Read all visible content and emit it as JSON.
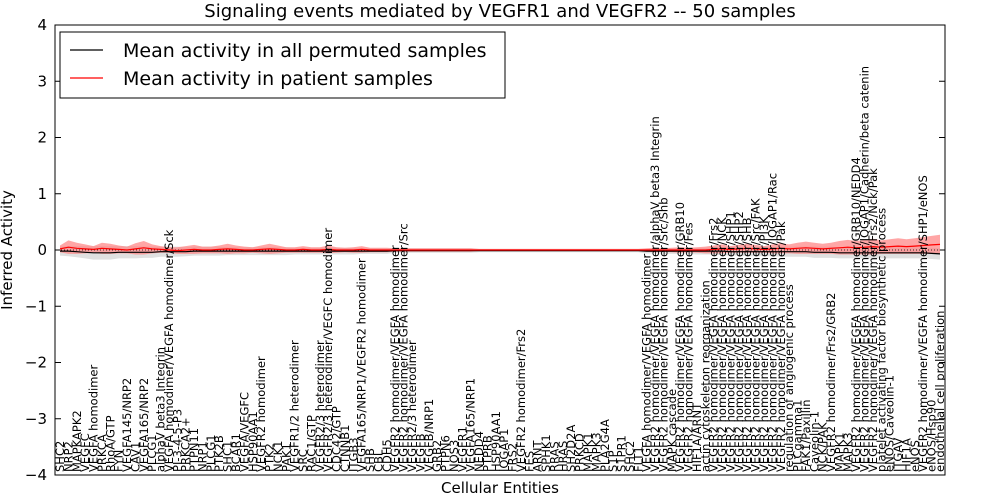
{
  "chart_data": {
    "type": "line",
    "title": "Signaling events mediated by VEGFR1 and VEGFR2 -- 50 samples",
    "xlabel": "Cellular Entities",
    "ylabel": "Inferred Activity",
    "ylim": [
      -4,
      4
    ],
    "yticks": [
      "4",
      "3",
      "2",
      "1",
      "0",
      "−1",
      "−2",
      "−3",
      "−4"
    ],
    "legend": {
      "position": "top-left",
      "entries": [
        {
          "label": "Mean activity in all permuted samples",
          "color": "#000000"
        },
        {
          "label": "Mean activity in patient samples",
          "color": "#ff0000"
        }
      ]
    },
    "colors": {
      "patient": "#ff0000",
      "patient_band": "#ff8080",
      "permuted_band": "#bbbbbb",
      "permuted": "#000000"
    },
    "categories": [
      "SHC2",
      "NRP2",
      "MAPKAPK2",
      "VEGFC",
      "VEGFA homodimer",
      "PRKCA",
      "RhoA/GTP",
      "FYN",
      "VEGFA145/NRP2",
      "CAV1",
      "VEGFA165/NRP2",
      "PLCG1",
      "alphaV beta3 Integrin",
      "VEGFA homodimer/VEGFA homodimer/Sck",
      "PI-3-4-5-P3",
      "PRKCA2+",
      "PTPN11",
      "NRP1",
      "PLCG1",
      "PTK2B",
      "SHC1",
      "BCAR1",
      "VEGFA/VEGFC",
      "HSP90AA1",
      "VEGFR2 homodimer",
      "PTK2",
      "NCK1",
      "PAK1",
      "VEGFR1/2 heterodimer",
      "SRC",
      "RAC1/GTP",
      "VEGFR2/3 heterodimer",
      "VEGFR2/3 heterodimer/VEGFC homodimer",
      "CDC42/GTP",
      "CTNNB1",
      "ITGB3",
      "VEGFA165/NRP1/VEGFR2 homodimer",
      "SHB",
      "CBL",
      "CDH5",
      "VEGFR2 homodimer/VEGFA homodimer",
      "VEGFR2 homodimer/VEGFA homodimer/Src",
      "VEGFR2/3 heterodimer",
      "VEGFB",
      "VEGFB/NRP1",
      "GRB2",
      "PTPN6",
      "NOS3",
      "VEGFR1",
      "VEGFA165/NRP1",
      "NEDD4",
      "PTPRB",
      "HSP90AA1",
      "IQGAP1",
      "FRS2",
      "VEGFR2 homodimer/Frs2",
      "FES",
      "ARNT",
      "SPHK1",
      "RRAS",
      "HRAS",
      "SH2D2A",
      "PRKCD",
      "MAPK1",
      "MAPK3",
      "PLA2G4A",
      "S1P",
      "S1PR1",
      "SHC2",
      "FLT1",
      "VEGFA homodimer/VEGFA homodimer",
      "VEGFR2 homodimer/VEGFA homodimer/alphaV beta3 Integrin",
      "VEGFR2 homodimer/VEGFA homodimer/Src/Shb",
      "MAPK cascade",
      "VEGFR2 homodimer/VEGFA homodimer/GRB10",
      "VEGFR2 homodimer/VEGFA homodimer/Fes",
      "HIF1A/ARNT",
      "actin cytoskeleton reorganization",
      "VEGFR2 homodimer/VEGFA homodimer/Frs2",
      "VEGFR2 homodimer/VEGFA homodimer/NCK",
      "VEGFR2 homodimer/VEGFA homodimer/SHP1",
      "VEGFR2 homodimer/VEGFA homodimer/SHP2",
      "VEGFR2 homodimer/VEGFA homodimer/SHB",
      "VEGFR2 homodimer/VEGFA homodimer/Src/FAK",
      "VEGFR2 homodimer/VEGFA homodimer/PI3K",
      "VEGFR2 homodimer/VEGFA homodimer/IQGAP1/Rac",
      "VEGFR2 homodimer/VEGFA homodimer/Pak",
      "regulation of angiogenic process",
      "PLCgamma1",
      "FAK1/Paxillin",
      "Caveolin-1",
      "NCK/PAK",
      "VEGFR2 homodimer/Frs2/GRB2",
      "MAPK1",
      "MAPK3",
      "VEGFR2 homodimer/VEGFA homodimer/GRB10/NEDD4",
      "VEGFR2 homodimer/VEGFA homodimer/IQGAP1/Cadherin/beta catenin",
      "VEGFR2 homodimer/VEGFA homodimer/Frs2/Nck/Pak",
      "platelet activating factor biosynthetic process",
      "eNOS/Caveolin-1",
      "ITGAV",
      "HIF1A",
      "eNOS",
      "VEGFR2 homodimer/VEGFA homodimer/SHP1/eNOS",
      "eNOS/Hsp90",
      "endothelial cell proliferation"
    ],
    "permuted_mean": [
      -0.02,
      -0.02,
      -0.03,
      -0.04,
      -0.05,
      -0.05,
      -0.05,
      -0.04,
      -0.04,
      -0.04,
      -0.04,
      -0.04,
      -0.03,
      -0.03,
      -0.03,
      -0.03,
      -0.02,
      -0.02,
      -0.02,
      -0.02,
      -0.02,
      -0.02,
      -0.02,
      -0.02,
      -0.02,
      -0.02,
      -0.02,
      -0.02,
      -0.02,
      -0.02,
      -0.02,
      -0.02,
      -0.02,
      -0.02,
      -0.02,
      -0.02,
      -0.02,
      -0.02,
      -0.02,
      -0.02,
      -0.01,
      -0.01,
      -0.01,
      -0.01,
      -0.01,
      -0.01,
      -0.01,
      -0.01,
      -0.01,
      -0.01,
      -0.01,
      -0.01,
      -0.01,
      -0.01,
      -0.01,
      -0.01,
      -0.01,
      -0.01,
      -0.01,
      -0.01,
      -0.01,
      -0.01,
      -0.01,
      -0.01,
      -0.01,
      -0.01,
      -0.01,
      -0.01,
      -0.01,
      -0.01,
      -0.02,
      -0.02,
      -0.02,
      -0.02,
      -0.02,
      -0.02,
      -0.02,
      -0.02,
      -0.02,
      -0.02,
      -0.03,
      -0.03,
      -0.03,
      -0.03,
      -0.03,
      -0.03,
      -0.03,
      -0.03,
      -0.03,
      -0.03,
      -0.04,
      -0.04,
      -0.04,
      -0.05,
      -0.05,
      -0.05,
      -0.05,
      -0.05,
      -0.05,
      -0.05,
      -0.05,
      -0.05,
      -0.05,
      -0.05,
      -0.06,
      -0.07
    ],
    "patient_mean": [
      0.02,
      0.05,
      0.03,
      0.02,
      0.01,
      0.03,
      0.02,
      0.01,
      0.0,
      0.02,
      0.04,
      0.02,
      0.01,
      0.0,
      -0.01,
      0.0,
      0.01,
      0.0,
      0.0,
      0.01,
      0.02,
      0.01,
      0.0,
      0.0,
      0.01,
      0.02,
      0.01,
      0.0,
      0.0,
      0.01,
      0.0,
      0.0,
      0.01,
      0.0,
      0.0,
      0.0,
      0.01,
      0.0,
      0.0,
      0.0,
      0.0,
      0.0,
      0.0,
      0.0,
      0.0,
      0.0,
      0.0,
      0.0,
      0.0,
      0.0,
      0.0,
      0.0,
      0.0,
      0.0,
      0.0,
      0.0,
      0.0,
      0.0,
      0.0,
      0.0,
      0.0,
      0.0,
      0.0,
      0.0,
      0.0,
      0.0,
      0.0,
      0.0,
      0.0,
      0.0,
      0.0,
      0.0,
      0.0,
      0.0,
      0.0,
      0.0,
      0.0,
      0.0,
      0.01,
      0.02,
      0.01,
      0.02,
      0.03,
      0.02,
      0.01,
      0.02,
      0.03,
      0.02,
      0.03,
      0.04,
      0.03,
      0.02,
      0.03,
      0.04,
      0.05,
      0.04,
      0.05,
      0.06,
      0.05,
      0.06,
      0.07,
      0.06,
      0.07,
      0.08,
      0.09,
      0.1
    ],
    "patient_band": [
      0.06,
      0.12,
      0.1,
      0.08,
      0.06,
      0.1,
      0.09,
      0.07,
      0.06,
      0.1,
      0.12,
      0.08,
      0.06,
      0.05,
      0.06,
      0.07,
      0.08,
      0.06,
      0.06,
      0.07,
      0.09,
      0.07,
      0.06,
      0.05,
      0.07,
      0.09,
      0.07,
      0.05,
      0.05,
      0.06,
      0.05,
      0.05,
      0.07,
      0.05,
      0.04,
      0.05,
      0.06,
      0.04,
      0.04,
      0.04,
      0.03,
      0.03,
      0.03,
      0.03,
      0.03,
      0.03,
      0.03,
      0.03,
      0.03,
      0.03,
      0.02,
      0.02,
      0.02,
      0.02,
      0.02,
      0.02,
      0.02,
      0.02,
      0.02,
      0.02,
      0.02,
      0.02,
      0.02,
      0.02,
      0.02,
      0.02,
      0.02,
      0.02,
      0.02,
      0.02,
      0.03,
      0.04,
      0.03,
      0.04,
      0.05,
      0.04,
      0.05,
      0.06,
      0.07,
      0.08,
      0.06,
      0.07,
      0.08,
      0.07,
      0.06,
      0.08,
      0.09,
      0.08,
      0.1,
      0.11,
      0.1,
      0.09,
      0.1,
      0.12,
      0.13,
      0.12,
      0.13,
      0.14,
      0.12,
      0.13,
      0.14,
      0.13,
      0.14,
      0.15,
      0.16,
      0.17
    ],
    "permuted_band": [
      0.08,
      0.09,
      0.1,
      0.11,
      0.12,
      0.12,
      0.12,
      0.11,
      0.11,
      0.11,
      0.1,
      0.1,
      0.09,
      0.09,
      0.09,
      0.08,
      0.08,
      0.08,
      0.08,
      0.08,
      0.07,
      0.07,
      0.07,
      0.07,
      0.07,
      0.07,
      0.07,
      0.07,
      0.06,
      0.06,
      0.06,
      0.06,
      0.06,
      0.06,
      0.06,
      0.06,
      0.05,
      0.05,
      0.05,
      0.05,
      0.04,
      0.04,
      0.04,
      0.04,
      0.04,
      0.04,
      0.04,
      0.04,
      0.04,
      0.04,
      0.03,
      0.03,
      0.03,
      0.03,
      0.03,
      0.03,
      0.03,
      0.03,
      0.03,
      0.03,
      0.03,
      0.03,
      0.03,
      0.03,
      0.03,
      0.03,
      0.03,
      0.03,
      0.03,
      0.03,
      0.04,
      0.04,
      0.05,
      0.05,
      0.05,
      0.05,
      0.06,
      0.06,
      0.06,
      0.07,
      0.07,
      0.07,
      0.08,
      0.08,
      0.08,
      0.08,
      0.09,
      0.09,
      0.09,
      0.09,
      0.1,
      0.1,
      0.1,
      0.1,
      0.1,
      0.1,
      0.1,
      0.1,
      0.1,
      0.1,
      0.1,
      0.1,
      0.1,
      0.1,
      0.1,
      0.1
    ]
  }
}
